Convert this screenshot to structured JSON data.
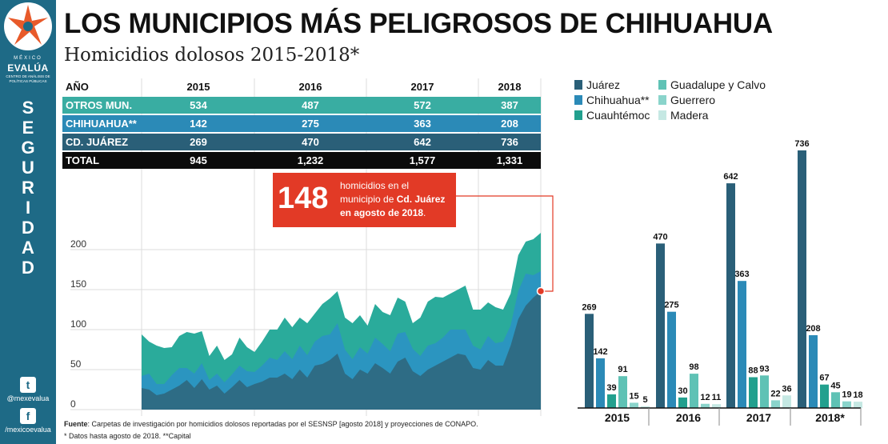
{
  "header": {
    "title": "LOS MUNICIPIOS MÁS PELIGROSOS DE CHIHUAHUA",
    "subtitle": "Homicidios dolosos 2015-2018*"
  },
  "sidebar": {
    "brand_top": "MÉXICO",
    "brand_name": "EVALÚA",
    "brand_sub": "CENTRO DE ANÁLISIS DE POLÍTICAS PÚBLICAS",
    "section_letters": [
      "S",
      "E",
      "G",
      "U",
      "R",
      "I",
      "D",
      "A",
      "D"
    ],
    "twitter_handle": "@mexevalua",
    "facebook_handle": "/mexicoevalua",
    "twitter_icon": "twitter-icon",
    "facebook_icon": "facebook-icon",
    "color": "#1e6a86"
  },
  "table": {
    "headers": [
      "AÑO",
      "2015",
      "2016",
      "2017",
      "2018"
    ],
    "rows": [
      {
        "label": "OTROS MUN.",
        "values": [
          "534",
          "487",
          "572",
          "387"
        ]
      },
      {
        "label": "CHIHUAHUA**",
        "values": [
          "142",
          "275",
          "363",
          "208"
        ]
      },
      {
        "label": "CD. JUÁREZ",
        "values": [
          "269",
          "470",
          "642",
          "736"
        ]
      },
      {
        "label": "TOTAL",
        "values": [
          "945",
          "1,232",
          "1,577",
          "1,331"
        ]
      }
    ]
  },
  "callout": {
    "number": "148",
    "text_plain": "homicidios en el municipio de",
    "text_bold": "Cd. Juárez en agosto de 2018",
    "text_end": "."
  },
  "legend": {
    "items": [
      {
        "name": "Juárez",
        "color": "#2a5f78"
      },
      {
        "name": "Chihuahua**",
        "color": "#2b8ab7"
      },
      {
        "name": "Cuauhtémoc",
        "color": "#22a08e"
      },
      {
        "name": "Guadalupe y Calvo",
        "color": "#5fc2b5"
      },
      {
        "name": "Guerrero",
        "color": "#8ad4cb"
      },
      {
        "name": "Madera",
        "color": "#c5e8e3"
      }
    ]
  },
  "footer": {
    "fuente_label": "Fuente",
    "fuente_text": ": Carpetas de investigación por homicidios dolosos reportadas por el SESNSP [agosto 2018] y proyecciones de CONAPO.",
    "nota": "* Datos hasta agosto de 2018. **Capital"
  },
  "chart_data": [
    {
      "type": "area",
      "stacked": true,
      "ylim": [
        0,
        230
      ],
      "yticks": [
        "200",
        "150",
        "100",
        "50",
        "0"
      ],
      "grid": true,
      "series": [
        {
          "name": "Juárez",
          "color": "#2e6c85",
          "values": [
            27,
            25,
            18,
            20,
            25,
            30,
            37,
            27,
            38,
            25,
            30,
            20,
            28,
            37,
            28,
            32,
            35,
            40,
            40,
            45,
            38,
            50,
            40,
            55,
            57,
            62,
            70,
            45,
            38,
            50,
            45,
            58,
            52,
            45,
            60,
            65,
            48,
            42,
            50,
            55,
            60,
            65,
            70,
            68,
            52,
            50,
            62,
            55,
            55,
            80,
            113,
            130,
            140,
            148
          ]
        },
        {
          "name": "Chihuahua**",
          "color": "#2b95c0",
          "values": [
            15,
            20,
            14,
            12,
            18,
            22,
            15,
            18,
            20,
            12,
            15,
            14,
            16,
            18,
            20,
            15,
            20,
            25,
            22,
            28,
            25,
            30,
            28,
            30,
            35,
            32,
            38,
            30,
            25,
            28,
            25,
            32,
            30,
            28,
            35,
            32,
            28,
            25,
            30,
            28,
            30,
            35,
            30,
            32,
            28,
            25,
            30,
            28,
            30,
            25,
            35,
            40,
            28,
            25
          ]
        },
        {
          "name": "Otros",
          "color": "#2aab9b",
          "values": [
            52,
            40,
            48,
            45,
            35,
            40,
            45,
            50,
            40,
            30,
            35,
            28,
            25,
            35,
            30,
            25,
            30,
            35,
            38,
            42,
            40,
            35,
            40,
            35,
            40,
            45,
            40,
            40,
            45,
            40,
            35,
            42,
            40,
            45,
            45,
            38,
            32,
            48,
            55,
            58,
            50,
            45,
            50,
            55,
            45,
            50,
            42,
            45,
            40,
            40,
            45,
            40,
            45,
            48
          ]
        }
      ]
    },
    {
      "type": "bar",
      "categories": [
        "2015",
        "2016",
        "2017",
        "2018*"
      ],
      "ylim": [
        0,
        760
      ],
      "series": [
        {
          "name": "Juárez",
          "values": [
            269,
            470,
            642,
            736
          ]
        },
        {
          "name": "Chihuahua**",
          "values": [
            142,
            275,
            363,
            208
          ]
        },
        {
          "name": "Cuauhtémoc",
          "values": [
            39,
            30,
            88,
            67
          ]
        },
        {
          "name": "Guadalupe y Calvo",
          "values": [
            91,
            98,
            93,
            45
          ]
        },
        {
          "name": "Guerrero",
          "values": [
            15,
            12,
            22,
            19
          ]
        },
        {
          "name": "Madera",
          "values": [
            5,
            11,
            36,
            18
          ]
        }
      ]
    }
  ]
}
